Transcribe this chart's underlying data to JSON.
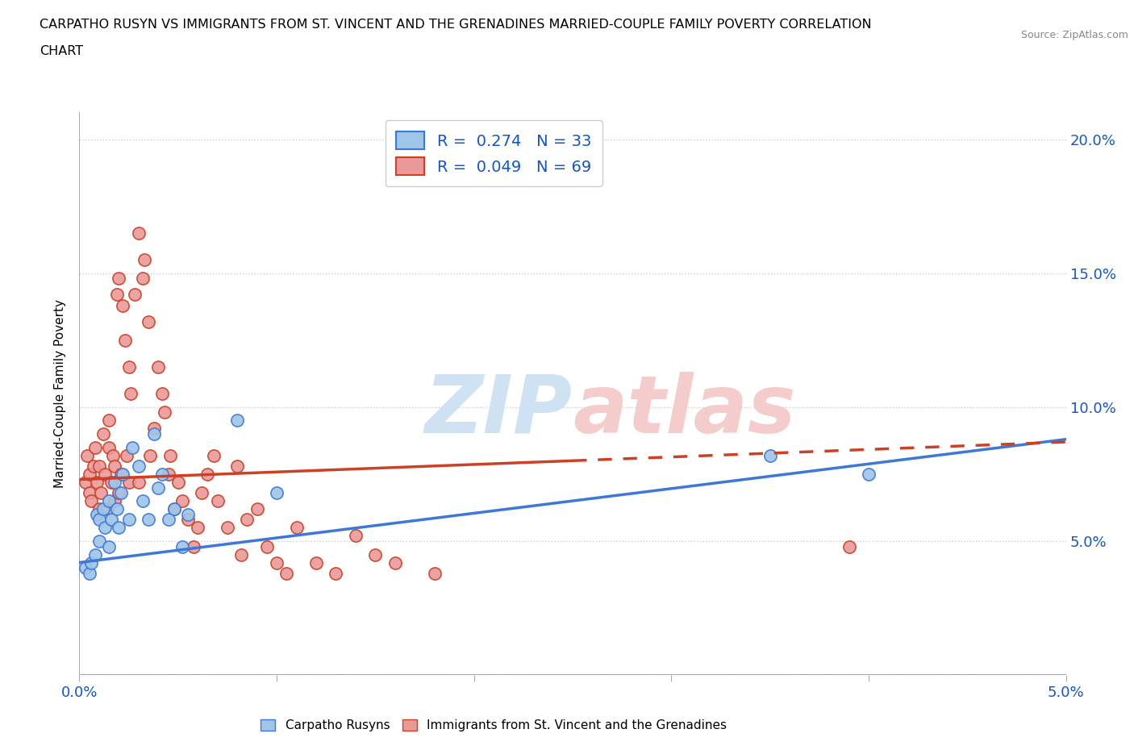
{
  "title_line1": "CARPATHO RUSYN VS IMMIGRANTS FROM ST. VINCENT AND THE GRENADINES MARRIED-COUPLE FAMILY POVERTY CORRELATION",
  "title_line2": "CHART",
  "source": "Source: ZipAtlas.com",
  "ylabel": "Married-Couple Family Poverty",
  "xlim": [
    0.0,
    0.05
  ],
  "ylim": [
    0.0,
    0.21
  ],
  "xticks": [
    0.0,
    0.01,
    0.02,
    0.03,
    0.04,
    0.05
  ],
  "xticklabels": [
    "0.0%",
    "",
    "",
    "",
    "",
    "5.0%"
  ],
  "yticks": [
    0.0,
    0.05,
    0.1,
    0.15,
    0.2
  ],
  "yticklabels": [
    "",
    "5.0%",
    "10.0%",
    "15.0%",
    "20.0%"
  ],
  "legend_R1": "0.274",
  "legend_N1": "33",
  "legend_R2": "0.049",
  "legend_N2": "69",
  "color_blue": "#9fc5e8",
  "color_pink": "#ea9999",
  "color_blue_line": "#3c78d8",
  "color_pink_line": "#cc4125",
  "color_blue_dark": "#1155cc",
  "watermark_zip_color": "#cfe2f3",
  "watermark_atlas_color": "#f4cccc",
  "blue_scatter_x": [
    0.0003,
    0.0005,
    0.0006,
    0.0008,
    0.0009,
    0.001,
    0.001,
    0.0012,
    0.0013,
    0.0015,
    0.0015,
    0.0016,
    0.0018,
    0.0019,
    0.002,
    0.0021,
    0.0022,
    0.0025,
    0.0027,
    0.003,
    0.0032,
    0.0035,
    0.0038,
    0.004,
    0.0042,
    0.0045,
    0.0048,
    0.0052,
    0.0055,
    0.008,
    0.01,
    0.035,
    0.04
  ],
  "blue_scatter_y": [
    0.04,
    0.038,
    0.042,
    0.045,
    0.06,
    0.058,
    0.05,
    0.062,
    0.055,
    0.048,
    0.065,
    0.058,
    0.072,
    0.062,
    0.055,
    0.068,
    0.075,
    0.058,
    0.085,
    0.078,
    0.065,
    0.058,
    0.09,
    0.07,
    0.075,
    0.058,
    0.062,
    0.048,
    0.06,
    0.095,
    0.068,
    0.082,
    0.075
  ],
  "pink_scatter_x": [
    0.0003,
    0.0004,
    0.0005,
    0.0005,
    0.0006,
    0.0007,
    0.0008,
    0.0009,
    0.001,
    0.001,
    0.0011,
    0.0012,
    0.0013,
    0.0014,
    0.0015,
    0.0015,
    0.0016,
    0.0017,
    0.0018,
    0.0018,
    0.0019,
    0.002,
    0.002,
    0.0021,
    0.0022,
    0.0023,
    0.0024,
    0.0025,
    0.0025,
    0.0026,
    0.0028,
    0.003,
    0.003,
    0.0032,
    0.0033,
    0.0035,
    0.0036,
    0.0038,
    0.004,
    0.0042,
    0.0043,
    0.0045,
    0.0046,
    0.0048,
    0.005,
    0.0052,
    0.0055,
    0.0058,
    0.006,
    0.0062,
    0.0065,
    0.0068,
    0.007,
    0.0075,
    0.008,
    0.0082,
    0.0085,
    0.009,
    0.0095,
    0.01,
    0.0105,
    0.011,
    0.012,
    0.013,
    0.014,
    0.015,
    0.016,
    0.018,
    0.039
  ],
  "pink_scatter_y": [
    0.072,
    0.082,
    0.068,
    0.075,
    0.065,
    0.078,
    0.085,
    0.072,
    0.062,
    0.078,
    0.068,
    0.09,
    0.075,
    0.062,
    0.085,
    0.095,
    0.072,
    0.082,
    0.065,
    0.078,
    0.142,
    0.148,
    0.068,
    0.075,
    0.138,
    0.125,
    0.082,
    0.072,
    0.115,
    0.105,
    0.142,
    0.165,
    0.072,
    0.148,
    0.155,
    0.132,
    0.082,
    0.092,
    0.115,
    0.105,
    0.098,
    0.075,
    0.082,
    0.062,
    0.072,
    0.065,
    0.058,
    0.048,
    0.055,
    0.068,
    0.075,
    0.082,
    0.065,
    0.055,
    0.078,
    0.045,
    0.058,
    0.062,
    0.048,
    0.042,
    0.038,
    0.055,
    0.042,
    0.038,
    0.052,
    0.045,
    0.042,
    0.038,
    0.048
  ],
  "blue_trend": [
    0.0,
    0.042,
    0.05,
    0.088
  ],
  "pink_trend_solid": [
    0.0,
    0.073,
    0.025,
    0.08
  ],
  "pink_trend_dashed": [
    0.025,
    0.08,
    0.05,
    0.087
  ],
  "bg_color": "#ffffff",
  "grid_color": "#cccccc"
}
